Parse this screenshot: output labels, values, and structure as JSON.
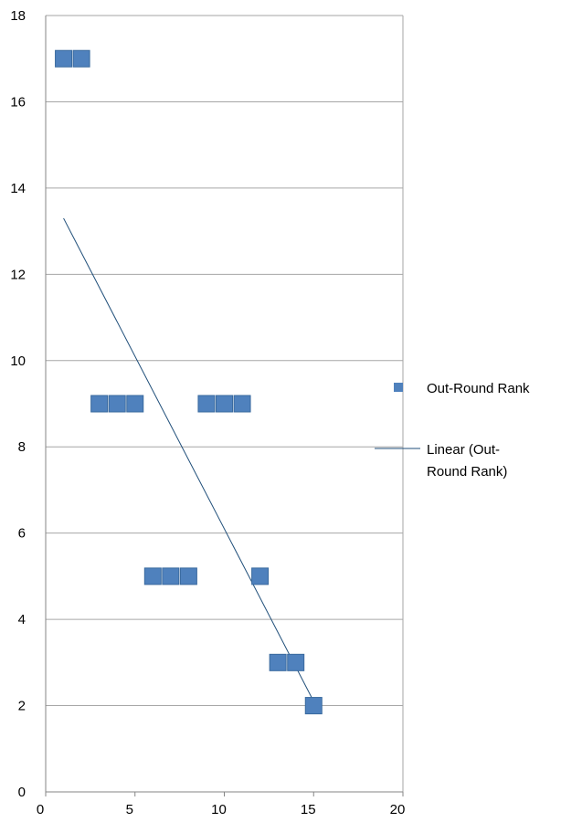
{
  "chart_data": {
    "type": "scatter",
    "title": "",
    "xlabel": "",
    "ylabel": "",
    "xlim": [
      0,
      20
    ],
    "ylim": [
      0,
      18
    ],
    "x_ticks": [
      0,
      5,
      10,
      15,
      20
    ],
    "y_ticks": [
      0,
      2,
      4,
      6,
      8,
      10,
      12,
      14,
      16,
      18
    ],
    "grid": {
      "horizontal": true,
      "vertical": false
    },
    "legend_position": "right",
    "series": [
      {
        "name": "Out-Round Rank",
        "kind": "scatter",
        "marker": "square",
        "color": "#4f81bd",
        "points": [
          {
            "x": 1,
            "y": 17
          },
          {
            "x": 2,
            "y": 17
          },
          {
            "x": 3,
            "y": 9
          },
          {
            "x": 4,
            "y": 9
          },
          {
            "x": 5,
            "y": 9
          },
          {
            "x": 6,
            "y": 5
          },
          {
            "x": 7,
            "y": 5
          },
          {
            "x": 8,
            "y": 5
          },
          {
            "x": 9,
            "y": 9
          },
          {
            "x": 10,
            "y": 9
          },
          {
            "x": 11,
            "y": 9
          },
          {
            "x": 12,
            "y": 5
          },
          {
            "x": 13,
            "y": 3
          },
          {
            "x": 14,
            "y": 3
          },
          {
            "x": 15,
            "y": 2
          }
        ]
      },
      {
        "name_lines": [
          "Linear (Out-",
          "Round Rank)"
        ],
        "kind": "trendline",
        "color": "#1f4e79",
        "points": [
          {
            "x": 1,
            "y": 13.3
          },
          {
            "x": 15,
            "y": 2.1
          }
        ]
      }
    ]
  }
}
